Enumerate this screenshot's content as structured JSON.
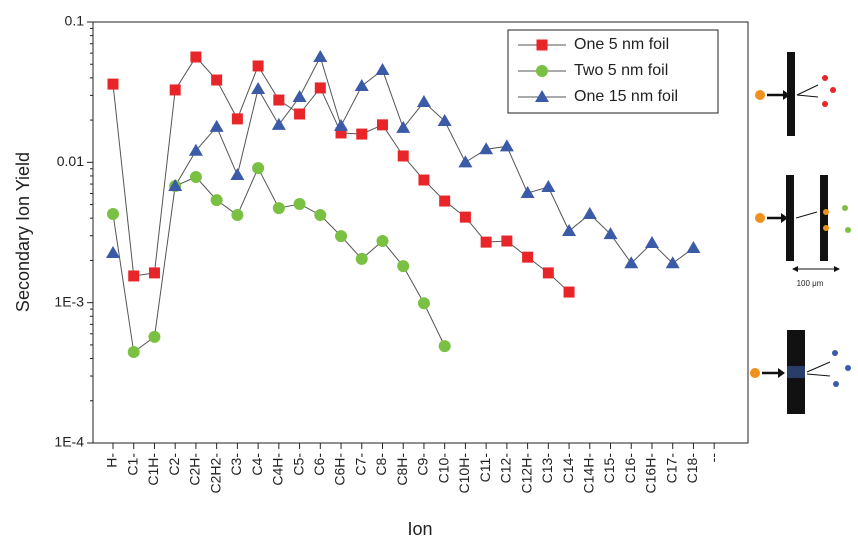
{
  "chart_data": {
    "type": "line",
    "ylabel": "Secondary Ion Yield",
    "xlabel": "Ion",
    "log_y": true,
    "legend": "upper right",
    "categories": [
      "H-",
      "C1-",
      "C1H-",
      "C2-",
      "C2H-",
      "C2H2-",
      "C3-",
      "C4-",
      "C4H-",
      "C5-",
      "C6-",
      "C6H-",
      "C7-",
      "C8-",
      "C8H-",
      "C9-",
      "C10-",
      "C10H-",
      "C11-",
      "C12-",
      "C12H-",
      "C13-",
      "C14-",
      "C14H-",
      "C15-",
      "C16-",
      "C16H-",
      "C17-",
      "C18-",
      "--"
    ],
    "ylim": [
      0.0001,
      0.1
    ],
    "yticks": [
      0.1,
      0.01,
      {
        "value": 0.001,
        "label": "1E-3"
      },
      {
        "value": 0.0001,
        "label": "1E-4"
      }
    ],
    "series": [
      {
        "name": "One 5 nm foil",
        "color": "#e8262a",
        "marker": "square",
        "values": [
          0.0361,
          0.00155,
          0.00163,
          0.0328,
          0.0563,
          0.0386,
          0.0204,
          0.0486,
          0.0278,
          0.0221,
          0.0339,
          0.0162,
          0.0159,
          0.0185,
          0.0111,
          0.00748,
          0.0053,
          0.00407,
          0.0027,
          0.00275,
          0.00211,
          0.00163,
          0.00119,
          null,
          null,
          null,
          null,
          null,
          null,
          null
        ]
      },
      {
        "name": "Two 5 nm foil",
        "color": "#7ac143",
        "marker": "circle",
        "values": [
          0.00428,
          0.000445,
          0.00057,
          0.00678,
          0.00786,
          0.00538,
          0.00421,
          0.0091,
          0.00472,
          0.00505,
          0.00421,
          0.00298,
          0.00205,
          0.00275,
          0.00182,
          0.00099,
          0.00049,
          null,
          null,
          null,
          null,
          null,
          null,
          null,
          null,
          null,
          null,
          null,
          null,
          null
        ]
      },
      {
        "name": "One 15 nm foil",
        "color": "#3b5ba9",
        "marker": "triangle",
        "values": [
          0.00226,
          null,
          null,
          0.00678,
          0.0121,
          0.0179,
          0.00812,
          0.0333,
          0.0185,
          0.0292,
          0.0563,
          0.0182,
          0.035,
          0.0455,
          0.0176,
          0.0269,
          0.0197,
          0.01,
          0.0124,
          0.013,
          0.00604,
          0.00667,
          0.00324,
          0.00428,
          0.00308,
          0.00191,
          0.00266,
          0.00191,
          0.00245,
          null
        ]
      }
    ],
    "annotations": [
      "100 μm"
    ]
  }
}
